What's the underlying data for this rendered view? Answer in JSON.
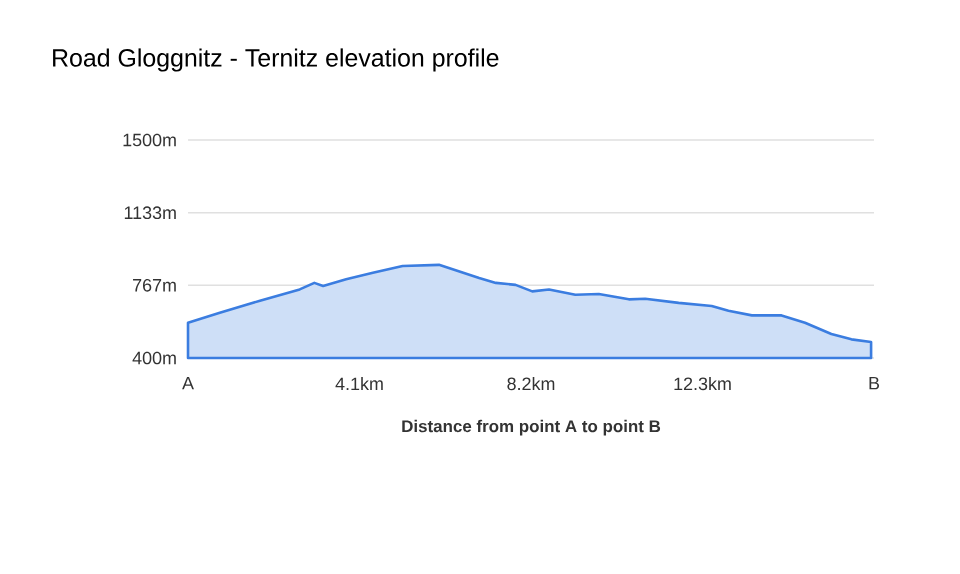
{
  "chart_data": {
    "type": "area",
    "title": "Road Gloggnitz - Ternitz elevation profile",
    "xlabel": "Distance from point A to point B",
    "x": [
      0,
      0.76,
      1.72,
      2.67,
      3.02,
      3.23,
      3.78,
      4.42,
      5.13,
      6.0,
      6.48,
      6.96,
      7.36,
      7.83,
      8.23,
      8.63,
      9.26,
      9.82,
      10.54,
      10.93,
      11.73,
      12.52,
      12.92,
      13.48,
      14.19,
      14.75,
      15.38,
      15.86,
      16.33
    ],
    "values": [
      578,
      628,
      689,
      746,
      779,
      763,
      797,
      830,
      864,
      870,
      837,
      804,
      779,
      769,
      736,
      746,
      719,
      723,
      696,
      699,
      678,
      662,
      638,
      615,
      615,
      578,
      521,
      494,
      481
    ],
    "color": "#3b7de0",
    "xlim": [
      0,
      16.4
    ],
    "ylim": [
      400,
      1500
    ],
    "xticks": [
      {
        "value": 0,
        "label": "A"
      },
      {
        "value": 4.1,
        "label": "4.1km"
      },
      {
        "value": 8.2,
        "label": "8.2km"
      },
      {
        "value": 12.3,
        "label": "12.3km"
      },
      {
        "value": 16.4,
        "label": "B"
      }
    ],
    "yticks": [
      {
        "value": 400,
        "label": "400m"
      },
      {
        "value": 767,
        "label": "767m"
      },
      {
        "value": 1133,
        "label": "1133m"
      },
      {
        "value": 1500,
        "label": "1500m"
      }
    ],
    "grid": "y"
  }
}
